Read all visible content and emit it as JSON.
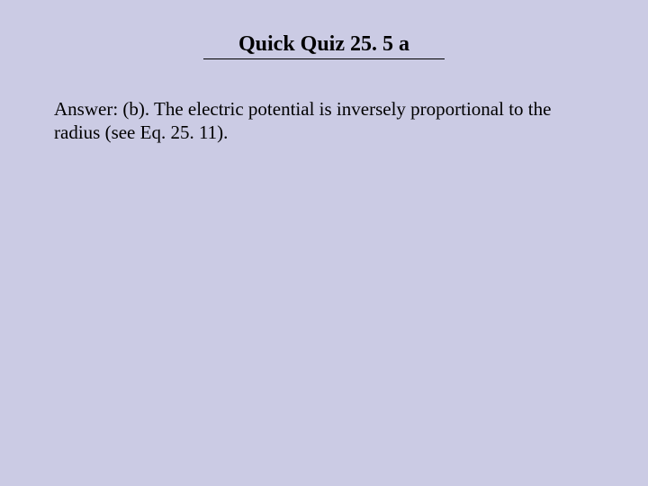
{
  "slide": {
    "title": "Quick Quiz 25. 5 a",
    "title_fontsize": 24,
    "title_color": "#000000",
    "body": "Answer: (b). The electric potential is inversely proportional to the radius (see Eq. 25. 11).",
    "body_fontsize": 21,
    "body_color": "#000000",
    "background_color": "#cbcbe4",
    "underline_width": 268,
    "underline_thickness": 1
  }
}
